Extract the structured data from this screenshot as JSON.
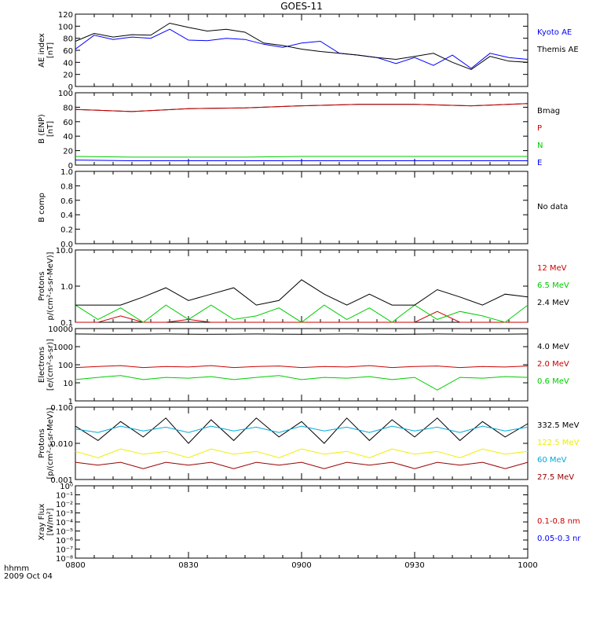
{
  "title": "GOES-11",
  "time_axis": {
    "ticks": [
      "0800",
      "0830",
      "0900",
      "0930",
      "1000"
    ],
    "corner_label": "hhmm",
    "date_label": "2009 Oct 04"
  },
  "colors": {
    "black": "#000000",
    "blue": "#0000ff",
    "red": "#cc0000",
    "green": "#00cc00",
    "yellow": "#eeee00",
    "cyan": "#00aadd",
    "darkred": "#990000"
  },
  "chart_data": [
    {
      "type": "line",
      "ylabel": [
        "AE index",
        "[nT]"
      ],
      "ylim": [
        0,
        120
      ],
      "log": false,
      "yticks": [
        "0",
        "20",
        "40",
        "60",
        "80",
        "100",
        "120"
      ],
      "x_hours": [
        8.0,
        8.083,
        8.167,
        8.25,
        8.333,
        8.417,
        8.5,
        8.583,
        8.667,
        8.75,
        8.833,
        8.917,
        9.0,
        9.083,
        9.167,
        9.25,
        9.333,
        9.417,
        9.5,
        9.583,
        9.667,
        9.75,
        9.833,
        9.917,
        10.0
      ],
      "series": [
        {
          "name": "Kyoto AE",
          "color": "blue",
          "values": [
            62,
            85,
            78,
            82,
            80,
            95,
            77,
            76,
            80,
            78,
            70,
            65,
            72,
            75,
            55,
            52,
            48,
            38,
            48,
            35,
            52,
            30,
            55,
            48,
            45
          ]
        },
        {
          "name": "Themis AE",
          "color": "black",
          "values": [
            75,
            88,
            82,
            86,
            85,
            105,
            98,
            92,
            95,
            90,
            72,
            68,
            62,
            58,
            55,
            52,
            48,
            45,
            50,
            55,
            40,
            28,
            50,
            42,
            40
          ]
        }
      ]
    },
    {
      "type": "line",
      "ylabel": [
        "B (ENP)",
        "[nT]"
      ],
      "ylim": [
        0,
        100
      ],
      "log": false,
      "yticks": [
        "0",
        "20",
        "40",
        "60",
        "80",
        "100"
      ],
      "x_hours": [
        8.0,
        8.25,
        8.5,
        8.75,
        9.0,
        9.25,
        9.5,
        9.75,
        10.0
      ],
      "series": [
        {
          "name": "Bmag",
          "color": "black",
          "values": [
            77,
            74,
            78,
            79,
            82,
            84,
            84,
            82,
            85
          ]
        },
        {
          "name": "P",
          "color": "red",
          "values": [
            77,
            74,
            78,
            79,
            82,
            84,
            84,
            82,
            85
          ]
        },
        {
          "name": "N",
          "color": "green",
          "values": [
            12,
            11,
            11,
            11,
            12,
            12,
            12,
            12,
            12
          ]
        },
        {
          "name": "E",
          "color": "blue",
          "values": [
            7,
            6,
            6,
            6,
            6,
            6,
            6,
            6,
            6
          ]
        }
      ]
    },
    {
      "type": "line",
      "ylabel": [
        "B comp"
      ],
      "ylim": [
        0,
        1.0
      ],
      "log": false,
      "yticks": [
        "0.0",
        "0.2",
        "0.4",
        "0.6",
        "0.8",
        "1.0"
      ],
      "series": [],
      "right_labels": [
        {
          "text": "No data",
          "color": "black"
        }
      ]
    },
    {
      "type": "line",
      "ylabel": [
        "Protons",
        "p/(cm²-s-sr-MeV)]"
      ],
      "ylim": [
        0.1,
        10
      ],
      "log": true,
      "yticks": [
        "0.1",
        "1.0",
        "10.0"
      ],
      "x_hours": [
        8.0,
        8.1,
        8.2,
        8.3,
        8.4,
        8.5,
        8.6,
        8.7,
        8.8,
        8.9,
        9.0,
        9.1,
        9.2,
        9.3,
        9.4,
        9.5,
        9.6,
        9.7,
        9.8,
        9.9,
        10.0
      ],
      "series": [
        {
          "name": "12 MeV",
          "color": "red",
          "values": [
            0.1,
            0.1,
            0.15,
            0.1,
            0.1,
            0.12,
            0.1,
            0.1,
            0.1,
            0.1,
            0.1,
            0.1,
            0.1,
            0.1,
            0.1,
            0.1,
            0.2,
            0.1,
            0.1,
            0.1,
            0.1
          ]
        },
        {
          "name": "6.5 MeV",
          "color": "green",
          "values": [
            0.3,
            0.12,
            0.25,
            0.1,
            0.3,
            0.12,
            0.3,
            0.12,
            0.15,
            0.25,
            0.1,
            0.3,
            0.12,
            0.25,
            0.1,
            0.3,
            0.12,
            0.2,
            0.15,
            0.1,
            0.3
          ]
        },
        {
          "name": "2.4 MeV",
          "color": "black",
          "values": [
            0.3,
            0.3,
            0.3,
            0.5,
            0.9,
            0.4,
            0.6,
            0.9,
            0.3,
            0.4,
            1.5,
            0.6,
            0.3,
            0.6,
            0.3,
            0.3,
            0.8,
            0.5,
            0.3,
            0.6,
            0.5
          ]
        }
      ]
    },
    {
      "type": "line",
      "ylabel": [
        "Electrons",
        "[e/(cm²-s-sr)]"
      ],
      "ylim": [
        1,
        10000
      ],
      "log": true,
      "yticks": [
        "1",
        "10",
        "100",
        "1000",
        "10000"
      ],
      "x_hours": [
        8.0,
        8.1,
        8.2,
        8.3,
        8.4,
        8.5,
        8.6,
        8.7,
        8.8,
        8.9,
        9.0,
        9.1,
        9.2,
        9.3,
        9.4,
        9.5,
        9.6,
        9.7,
        9.8,
        9.9,
        10.0
      ],
      "series": [
        {
          "name": "4.0 MeV",
          "color": "black",
          "values": [
            5000,
            4900,
            4800,
            4900,
            5000,
            4900,
            4800,
            4900,
            5000,
            4900,
            4800,
            4900,
            5000,
            4900,
            4800,
            4900,
            5000,
            4900,
            4800,
            4900,
            5000
          ]
        },
        {
          "name": "2.0 MeV",
          "color": "red",
          "values": [
            70,
            80,
            90,
            70,
            80,
            75,
            90,
            70,
            80,
            85,
            70,
            80,
            75,
            90,
            70,
            80,
            85,
            70,
            80,
            75,
            85
          ]
        },
        {
          "name": "0.6 MeV",
          "color": "green",
          "values": [
            15,
            20,
            25,
            15,
            20,
            18,
            22,
            15,
            20,
            25,
            15,
            20,
            18,
            22,
            15,
            20,
            4,
            20,
            18,
            22,
            20
          ]
        }
      ]
    },
    {
      "type": "line",
      "ylabel": [
        "Protons",
        "[p/(cm²-s-sr-MeV)]"
      ],
      "ylim": [
        0.001,
        0.1
      ],
      "log": true,
      "yticks": [
        "0.001",
        "0.010",
        "0.100"
      ],
      "x_hours": [
        8.0,
        8.1,
        8.2,
        8.3,
        8.4,
        8.5,
        8.6,
        8.7,
        8.8,
        8.9,
        9.0,
        9.1,
        9.2,
        9.3,
        9.4,
        9.5,
        9.6,
        9.7,
        9.8,
        9.9,
        10.0
      ],
      "series": [
        {
          "name": "332.5 MeV",
          "color": "black",
          "values": [
            0.03,
            0.012,
            0.04,
            0.015,
            0.05,
            0.01,
            0.045,
            0.012,
            0.05,
            0.015,
            0.04,
            0.01,
            0.05,
            0.012,
            0.045,
            0.015,
            0.05,
            0.012,
            0.04,
            0.015,
            0.035
          ]
        },
        {
          "name": "122.5 MeV",
          "color": "yellow",
          "values": [
            0.006,
            0.004,
            0.007,
            0.005,
            0.006,
            0.004,
            0.007,
            0.005,
            0.006,
            0.004,
            0.007,
            0.005,
            0.006,
            0.004,
            0.007,
            0.005,
            0.006,
            0.004,
            0.007,
            0.005,
            0.006
          ]
        },
        {
          "name": "60 MeV",
          "color": "cyan",
          "values": [
            0.025,
            0.02,
            0.03,
            0.022,
            0.028,
            0.02,
            0.03,
            0.022,
            0.028,
            0.02,
            0.03,
            0.022,
            0.028,
            0.02,
            0.03,
            0.022,
            0.028,
            0.02,
            0.03,
            0.022,
            0.028
          ]
        },
        {
          "name": "27.5 MeV",
          "color": "darkred",
          "values": [
            0.003,
            0.0025,
            0.003,
            0.002,
            0.003,
            0.0025,
            0.003,
            0.002,
            0.003,
            0.0025,
            0.003,
            0.002,
            0.003,
            0.0025,
            0.003,
            0.002,
            0.003,
            0.0025,
            0.003,
            0.002,
            0.003
          ]
        }
      ]
    },
    {
      "type": "line",
      "ylabel": [
        "Xray Flux",
        "[W/m²]"
      ],
      "ylim": [
        1e-09,
        1
      ],
      "log": true,
      "yticks": [
        "10⁻⁸",
        "10⁻⁷",
        "10⁻⁶",
        "10⁻⁵",
        "10⁻⁴",
        "10⁻³",
        "10⁻²",
        "10⁻¹",
        "10⁰"
      ],
      "series": [],
      "right_labels": [
        {
          "text": "0.1-0.8 nm",
          "color": "red"
        },
        {
          "text": "0.05-0.3 nr",
          "color": "blue"
        }
      ]
    }
  ]
}
